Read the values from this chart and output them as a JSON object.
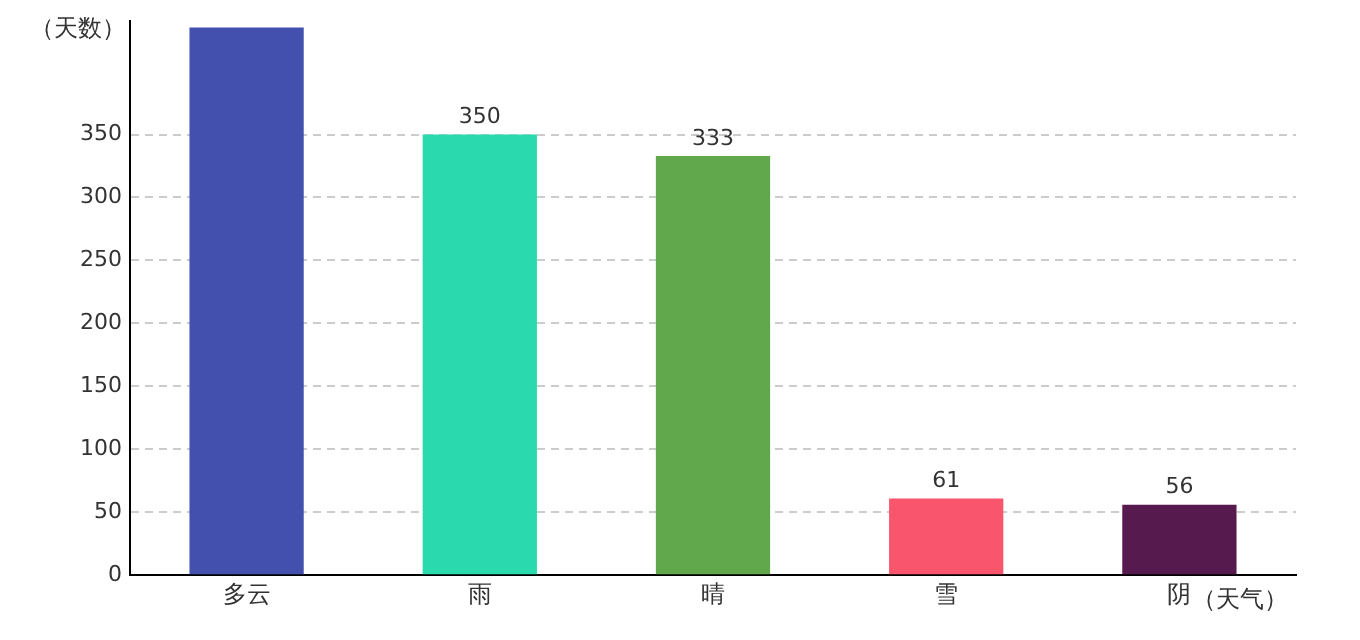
{
  "chart_data": {
    "type": "bar",
    "xlabel": "（天气）",
    "ylabel": "（天数）",
    "categories": [
      "多云",
      "雨",
      "晴",
      "雪",
      "阴"
    ],
    "values": [
      435,
      350,
      333,
      61,
      56
    ],
    "value_labels": [
      null,
      "350",
      "333",
      "61",
      "56"
    ],
    "colors": [
      "#4450ae",
      "#2ad9ad",
      "#61a84c",
      "#f9566d",
      "#561a4f"
    ],
    "ylim": [
      0,
      440
    ],
    "yticks": [
      0,
      50,
      100,
      150,
      200,
      250,
      300,
      350
    ],
    "grid": "y",
    "legend": false
  }
}
